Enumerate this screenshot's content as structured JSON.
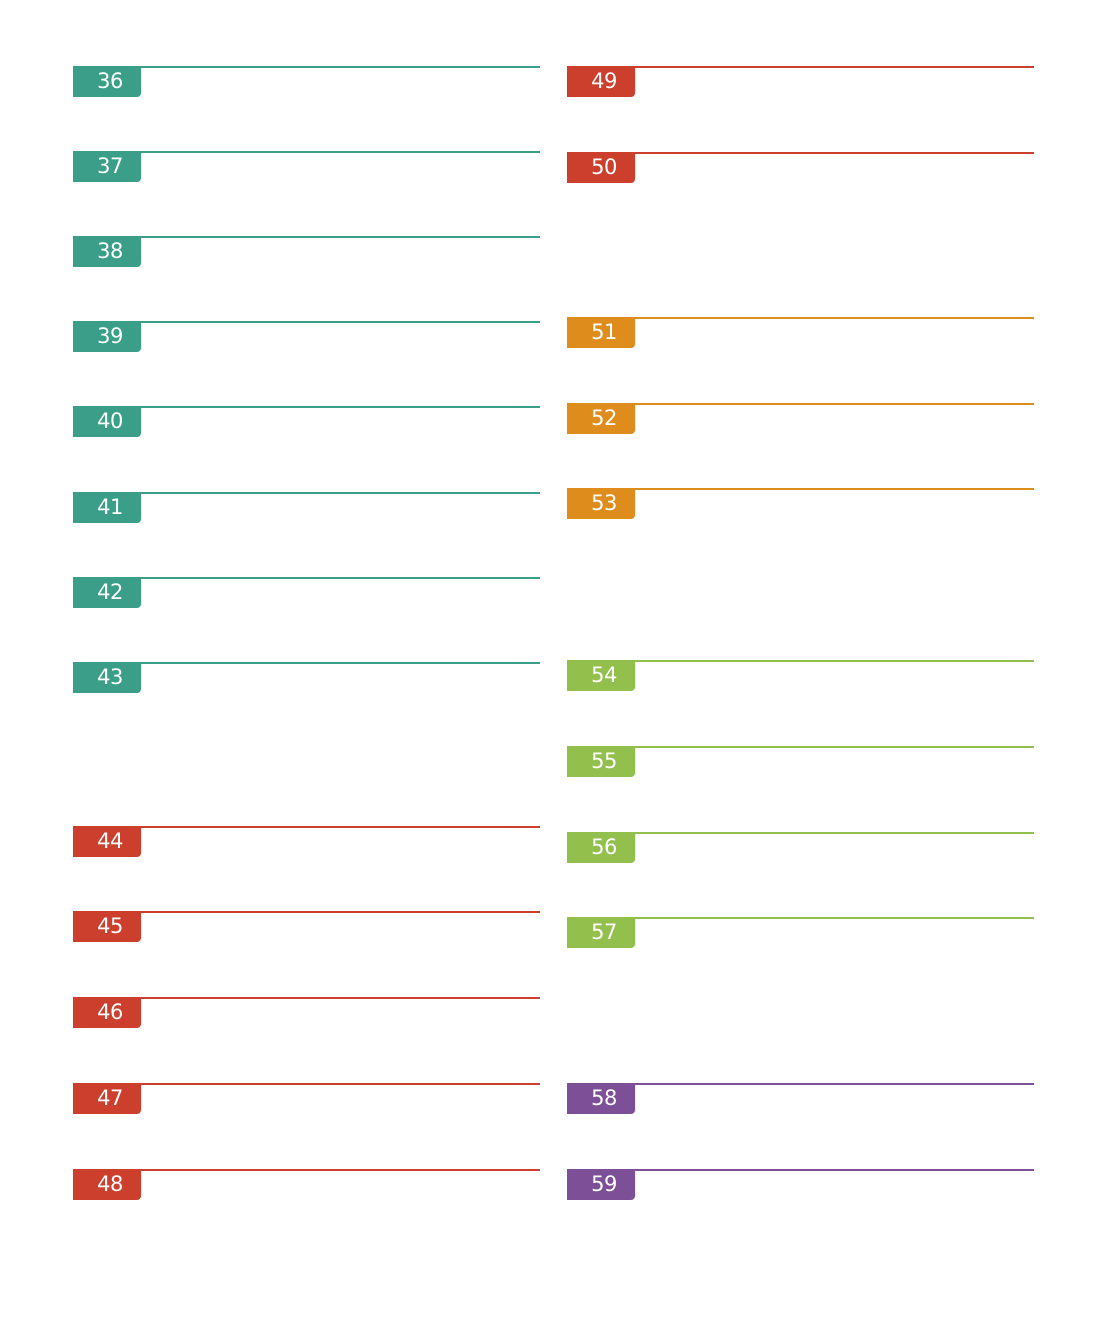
{
  "colors": {
    "teal": "#3a9e89",
    "red": "#cb3f2c",
    "orange": "#de8c1c",
    "green": "#93bf4d",
    "purple": "#7d4f97"
  },
  "entries": [
    {
      "label": "36",
      "color": "#3a9e89"
    },
    {
      "label": "37",
      "color": "#3a9e89"
    },
    {
      "label": "38",
      "color": "#3a9e89"
    },
    {
      "label": "39",
      "color": "#3a9e89"
    },
    {
      "label": "40",
      "color": "#3a9e89"
    },
    {
      "label": "41",
      "color": "#3a9e89"
    },
    {
      "label": "42",
      "color": "#3a9e89"
    },
    {
      "label": "43",
      "color": "#3a9e89"
    },
    {
      "label": "44",
      "color": "#cb3f2c"
    },
    {
      "label": "45",
      "color": "#cb3f2c"
    },
    {
      "label": "46",
      "color": "#cb3f2c"
    },
    {
      "label": "47",
      "color": "#cb3f2c"
    },
    {
      "label": "48",
      "color": "#cb3f2c"
    },
    {
      "label": "49",
      "color": "#cb3f2c"
    },
    {
      "label": "50",
      "color": "#cb3f2c"
    },
    {
      "label": "51",
      "color": "#de8c1c"
    },
    {
      "label": "52",
      "color": "#de8c1c"
    },
    {
      "label": "53",
      "color": "#de8c1c"
    },
    {
      "label": "54",
      "color": "#93bf4d"
    },
    {
      "label": "55",
      "color": "#93bf4d"
    },
    {
      "label": "56",
      "color": "#93bf4d"
    },
    {
      "label": "57",
      "color": "#93bf4d"
    },
    {
      "label": "58",
      "color": "#7d4f97"
    },
    {
      "label": "59",
      "color": "#7d4f97"
    }
  ]
}
